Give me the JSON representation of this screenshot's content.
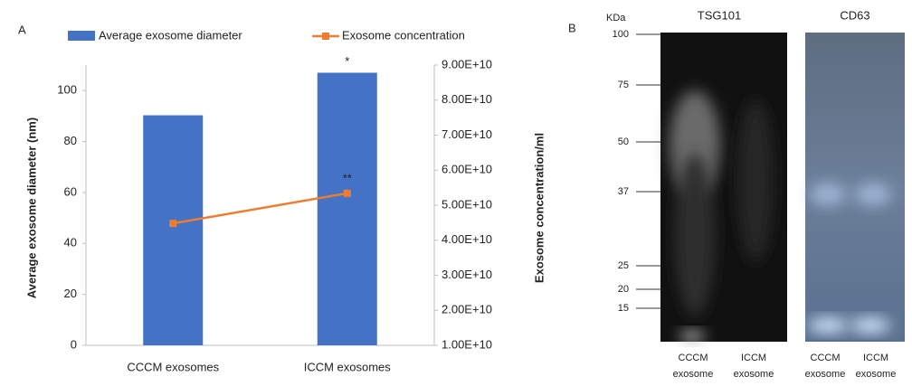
{
  "chart_data": {
    "type": "bar",
    "panel_label": "A",
    "categories": [
      "CCCM exosomes",
      "ICCM exosomes"
    ],
    "series": [
      {
        "name": "Average exosome diameter",
        "type": "bar",
        "color": "#4472c4",
        "values": [
          90.3,
          107
        ]
      },
      {
        "name": "Exosome concentration",
        "type": "line",
        "color": "#ed7d31",
        "axis": "y2",
        "values": [
          44800000000,
          53400000000
        ]
      }
    ],
    "y_label": "Average exosome diameter (nm)",
    "y2_label": "Exosome concentration/ml",
    "ylim": [
      0,
      110
    ],
    "yticks": [
      0,
      20,
      40,
      60,
      80,
      100
    ],
    "y2lim": [
      10000000000,
      90000000000
    ],
    "y2ticks": [
      {
        "value": 10000000000,
        "label": "1.00E+10"
      },
      {
        "value": 20000000000,
        "label": "2.00E+10"
      },
      {
        "value": 30000000000,
        "label": "3.00E+10"
      },
      {
        "value": 40000000000,
        "label": "4.00E+10"
      },
      {
        "value": 50000000000,
        "label": "5.00E+10"
      },
      {
        "value": 60000000000,
        "label": "6.00E+10"
      },
      {
        "value": 70000000000,
        "label": "7.00E+10"
      },
      {
        "value": 80000000000,
        "label": "8.00E+10"
      },
      {
        "value": 90000000000,
        "label": "9.00E+10"
      }
    ],
    "annotations": [
      "*",
      "**"
    ],
    "grid": false
  },
  "blot": {
    "panel_label": "B",
    "unit": "KDa",
    "markers": [
      100,
      75,
      50,
      37,
      25,
      20,
      15
    ],
    "panels": [
      {
        "title": "TSG101",
        "lanes": [
          [
            "CCCM",
            "exosome"
          ],
          [
            "ICCM",
            "exosome"
          ]
        ]
      },
      {
        "title": "CD63",
        "lanes": [
          [
            "CCCM",
            "exosome"
          ],
          [
            "ICCM",
            "exosome"
          ]
        ]
      }
    ]
  }
}
